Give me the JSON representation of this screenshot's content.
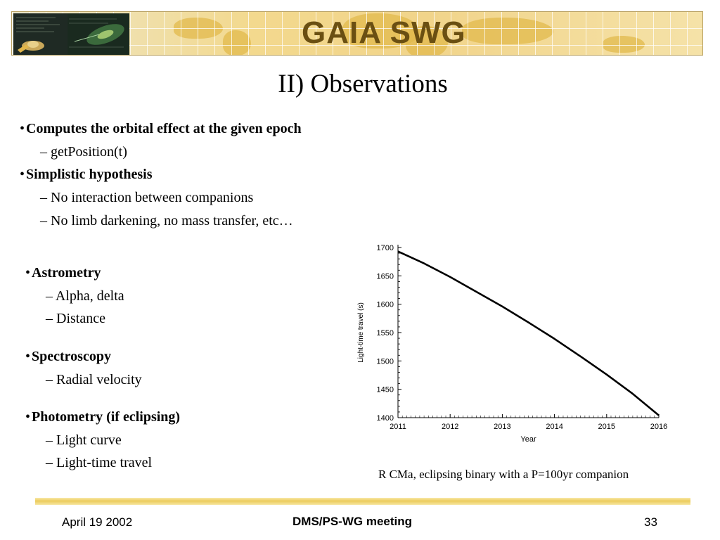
{
  "banner": {
    "title": "GAIA SWG"
  },
  "slide": {
    "title": "II) Observations"
  },
  "bullets": {
    "b1": "Computes the orbital effect at the given epoch",
    "b1_sub1": "– getPosition(t)",
    "b2": "Simplistic hypothesis",
    "b2_sub1": "– No interaction between companions",
    "b2_sub2": "– No limb darkening, no mass transfer, etc…",
    "b3": "Astrometry",
    "b3_sub1": "– Alpha, delta",
    "b3_sub2": "– Distance",
    "b4": "Spectroscopy",
    "b4_sub1": "– Radial velocity",
    "b5": "Photometry (if eclipsing)",
    "b5_sub1": "– Light curve",
    "b5_sub2": "– Light-time travel"
  },
  "bullet_char": "•",
  "caption": "R CMa, eclipsing binary with a P=100yr companion",
  "footer": {
    "date": "April 19 2002",
    "meeting": "DMS/PS-WG meeting",
    "page": "33"
  },
  "chart_data": {
    "type": "line",
    "title": "",
    "xlabel": "Year",
    "ylabel": "Light-time travel (s)",
    "xlim": [
      2011,
      2016
    ],
    "ylim": [
      1400,
      1700
    ],
    "xticks": [
      2011,
      2012,
      2013,
      2014,
      2015,
      2016
    ],
    "yticks": [
      1400,
      1450,
      1500,
      1550,
      1600,
      1650,
      1700
    ],
    "grid": false,
    "series": [
      {
        "x": [
          2011,
          2011.5,
          2012,
          2012.5,
          2013,
          2013.5,
          2014,
          2014.5,
          2015,
          2015.5,
          2016
        ],
        "y": [
          1693,
          1672,
          1648,
          1622,
          1596,
          1568,
          1539,
          1508,
          1476,
          1442,
          1404
        ]
      }
    ]
  }
}
